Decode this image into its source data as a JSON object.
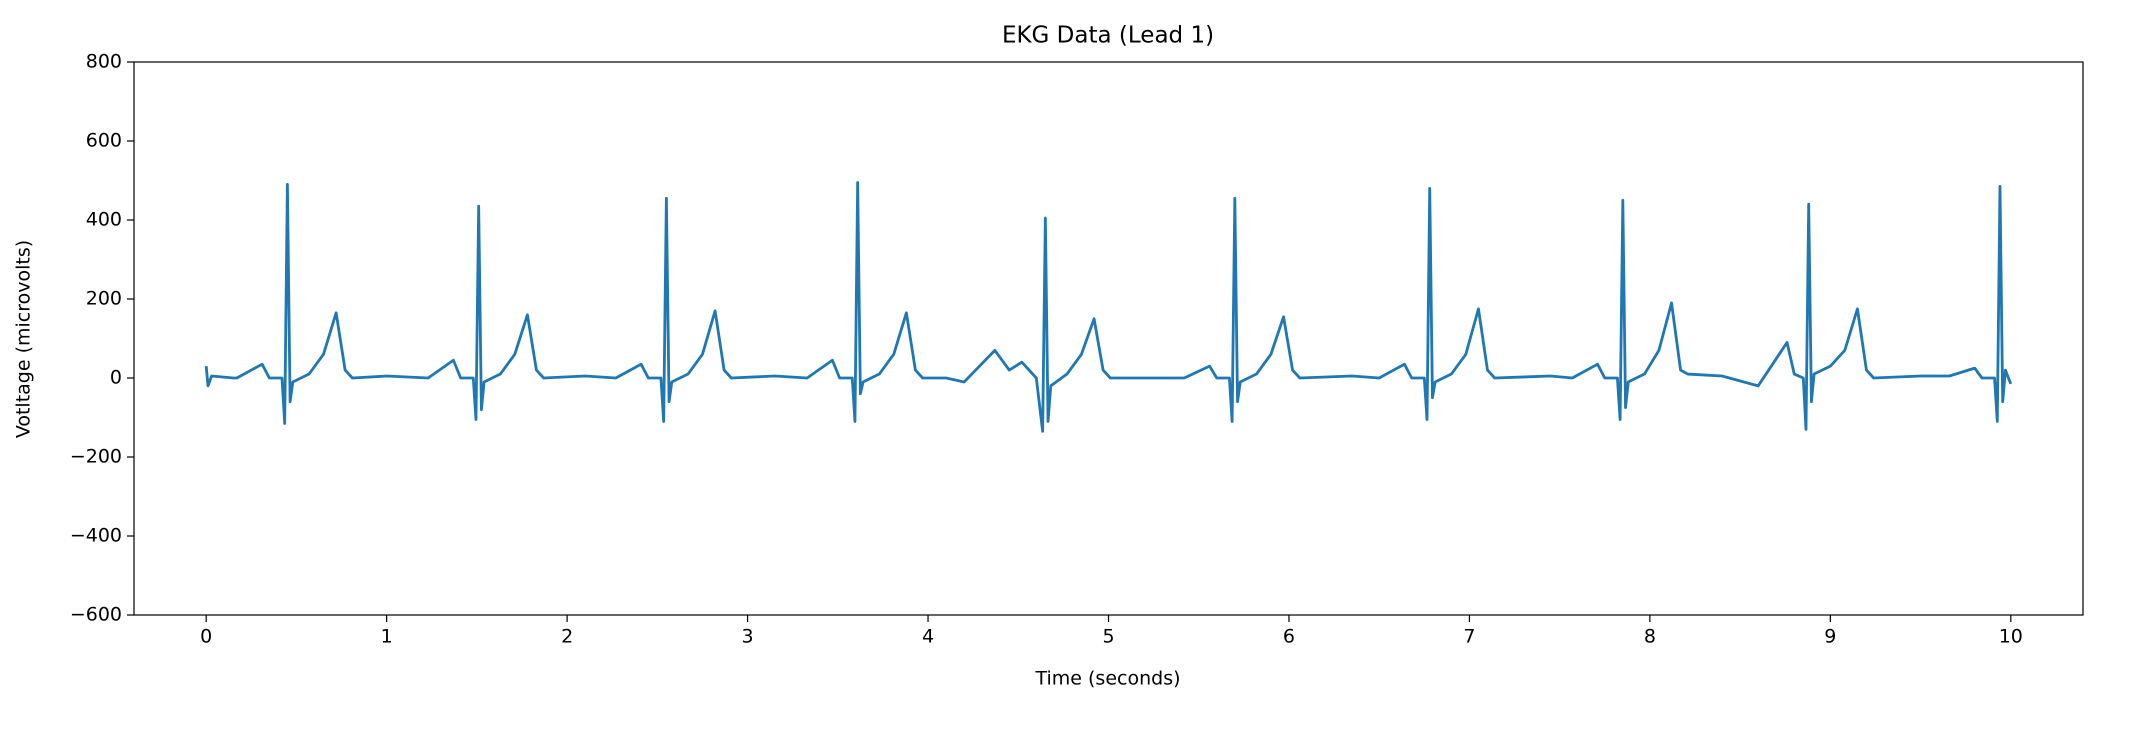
{
  "chart_data": {
    "type": "line",
    "title": "EKG Data (Lead 1)",
    "x_label": "Time (seconds)",
    "y_label": "Votltage (microvolts)",
    "color": "#1f77b4",
    "xlim": [
      -0.4,
      10.4
    ],
    "ylim": [
      -600,
      800
    ],
    "xticks": [
      0,
      1,
      2,
      3,
      4,
      5,
      6,
      7,
      8,
      9,
      10
    ],
    "yticks": [
      {
        "value": -600,
        "label": "−600"
      },
      {
        "value": -400,
        "label": "−400"
      },
      {
        "value": -200,
        "label": "−200"
      },
      0,
      200,
      400,
      600,
      800
    ],
    "x": [
      0,
      0.01,
      0.03,
      0.15,
      0.17,
      0.31,
      0.35,
      0.42,
      0.435,
      0.45,
      0.465,
      0.48,
      0.57,
      0.65,
      0.72,
      0.77,
      0.81,
      1.0,
      1.23,
      1.37,
      1.41,
      1.48,
      1.495,
      1.51,
      1.525,
      1.54,
      1.63,
      1.71,
      1.78,
      1.83,
      1.87,
      2.1,
      2.27,
      2.41,
      2.45,
      2.52,
      2.535,
      2.55,
      2.565,
      2.58,
      2.67,
      2.75,
      2.82,
      2.87,
      2.91,
      3.15,
      3.33,
      3.47,
      3.51,
      3.58,
      3.595,
      3.61,
      3.625,
      3.64,
      3.73,
      3.81,
      3.88,
      3.93,
      3.97,
      4.1,
      4.2,
      4.37,
      4.45,
      4.52,
      4.6,
      4.635,
      4.65,
      4.665,
      4.68,
      4.77,
      4.85,
      4.92,
      4.97,
      5.01,
      5.3,
      5.42,
      5.56,
      5.6,
      5.67,
      5.685,
      5.7,
      5.715,
      5.73,
      5.82,
      5.9,
      5.97,
      6.02,
      6.06,
      6.35,
      6.5,
      6.64,
      6.68,
      6.75,
      6.765,
      6.78,
      6.795,
      6.81,
      6.9,
      6.98,
      7.05,
      7.1,
      7.14,
      7.45,
      7.57,
      7.71,
      7.75,
      7.82,
      7.835,
      7.85,
      7.865,
      7.88,
      7.97,
      8.05,
      8.12,
      8.17,
      8.21,
      8.4,
      8.6,
      8.76,
      8.8,
      8.85,
      8.865,
      8.88,
      8.895,
      8.91,
      9.0,
      9.08,
      9.15,
      9.2,
      9.24,
      9.5,
      9.66,
      9.8,
      9.84,
      9.91,
      9.925,
      9.94,
      9.955,
      9.97,
      10.0
    ],
    "values": [
      30,
      -20,
      5,
      0,
      0,
      35,
      0,
      0,
      -115,
      490,
      -60,
      -10,
      10,
      60,
      165,
      20,
      0,
      5,
      0,
      45,
      0,
      0,
      -105,
      435,
      -80,
      -10,
      10,
      60,
      160,
      20,
      0,
      5,
      0,
      35,
      0,
      0,
      -110,
      455,
      -60,
      -10,
      10,
      60,
      170,
      20,
      0,
      5,
      0,
      45,
      0,
      0,
      -110,
      495,
      -40,
      -10,
      10,
      60,
      165,
      20,
      0,
      0,
      -10,
      70,
      20,
      40,
      0,
      -135,
      405,
      -110,
      -20,
      10,
      60,
      150,
      20,
      0,
      0,
      0,
      30,
      0,
      0,
      -110,
      455,
      -60,
      -10,
      10,
      60,
      155,
      20,
      0,
      5,
      0,
      35,
      0,
      0,
      -105,
      480,
      -50,
      -10,
      10,
      60,
      175,
      20,
      0,
      5,
      0,
      35,
      0,
      0,
      -105,
      450,
      -75,
      -10,
      10,
      70,
      190,
      20,
      10,
      5,
      -20,
      90,
      10,
      0,
      -130,
      440,
      -60,
      10,
      30,
      70,
      175,
      20,
      0,
      5,
      5,
      25,
      0,
      0,
      -110,
      485,
      -60,
      20,
      -15
    ]
  }
}
